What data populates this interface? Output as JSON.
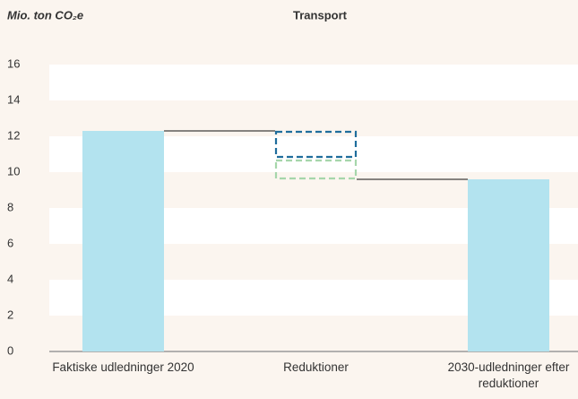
{
  "chart_data": {
    "type": "waterfall",
    "title": "Transport",
    "y_label": "Mio. ton CO₂e",
    "categories": [
      "Faktiske udledninger 2020",
      "Reduktioner",
      "2030-udledninger efter reduktioner"
    ],
    "values": [
      12.3,
      null,
      9.6
    ],
    "color": "#b3e3ef",
    "reductions": [
      {
        "color": "#1f6d9c",
        "value": 1.5
      },
      {
        "color": "#a6d6ab",
        "value": 1.2
      }
    ],
    "ylim": [
      0,
      16
    ],
    "yticks": [
      0,
      2,
      4,
      6,
      8,
      10,
      12,
      14,
      16
    ],
    "grid": "bands"
  }
}
